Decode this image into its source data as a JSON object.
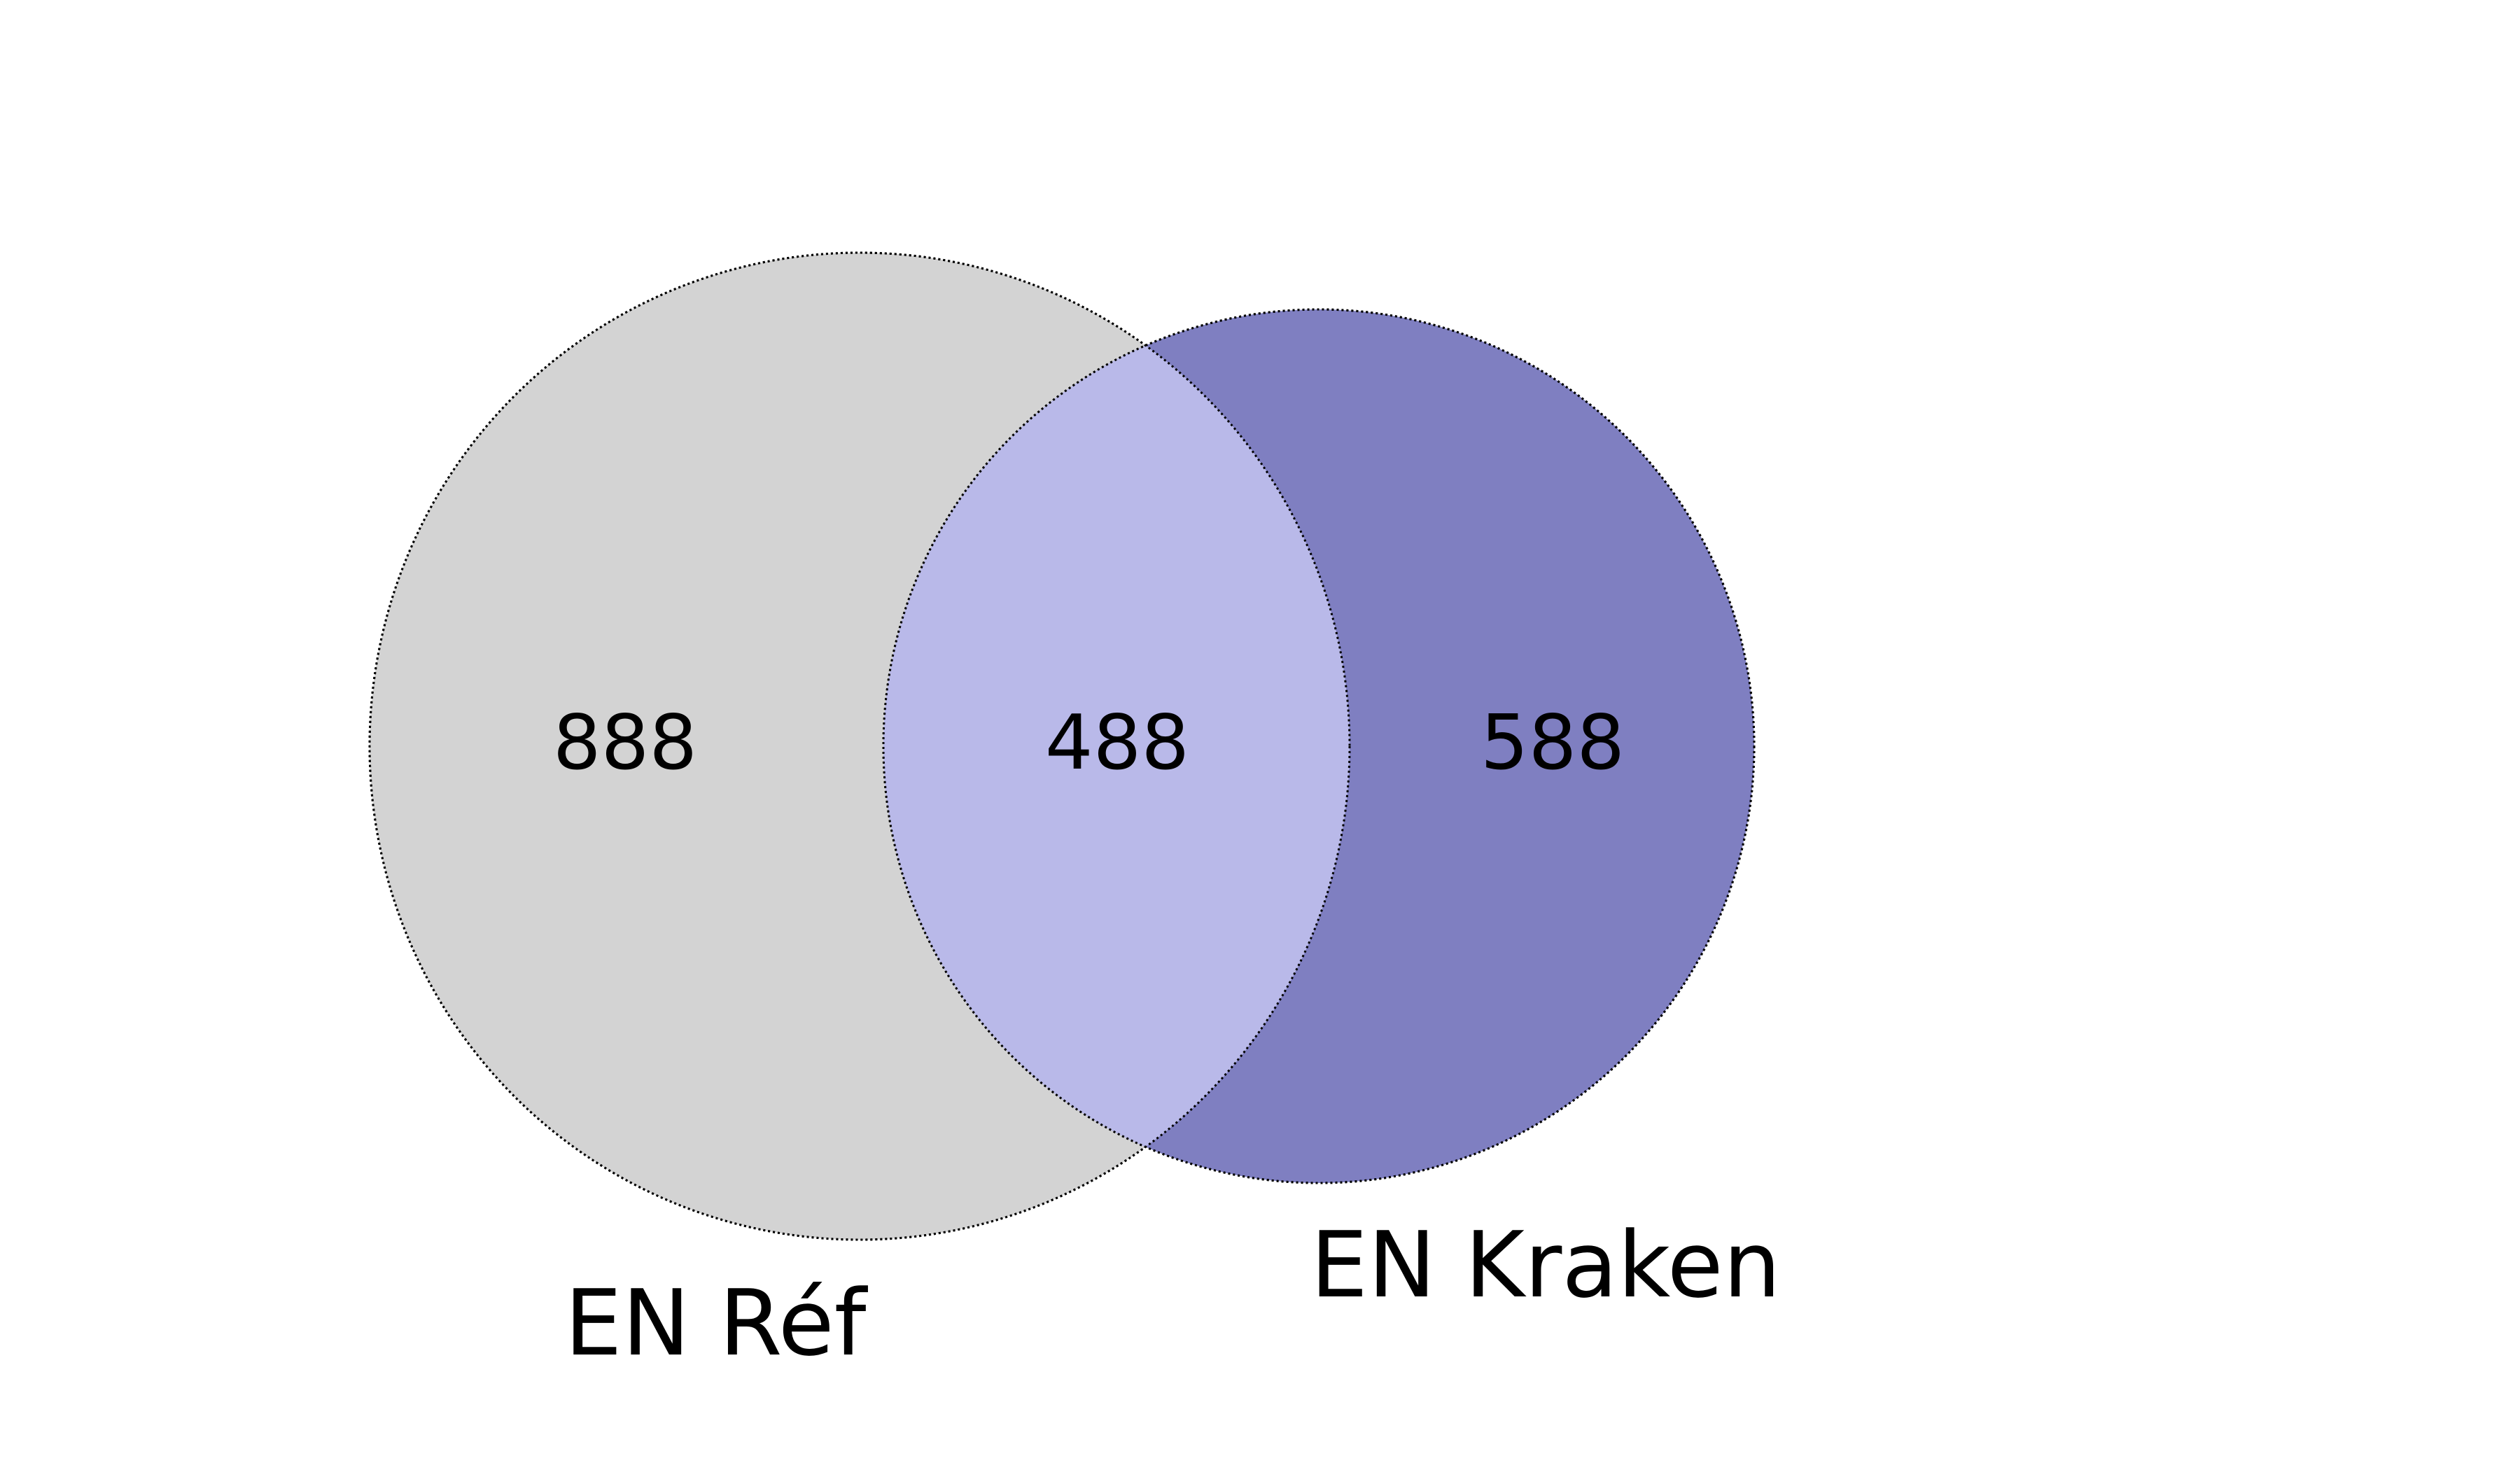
{
  "diagram": {
    "type": "venn2",
    "sets": [
      {
        "label": "EN Réf",
        "fill": "#d3d3d3"
      },
      {
        "label": "EN Kraken",
        "fill": "#7f7fc1"
      }
    ],
    "intersection_fill": "#b9b9e9",
    "outline_color": "#000000",
    "regions": {
      "only_a": "888",
      "both": "488",
      "only_b": "588"
    }
  }
}
